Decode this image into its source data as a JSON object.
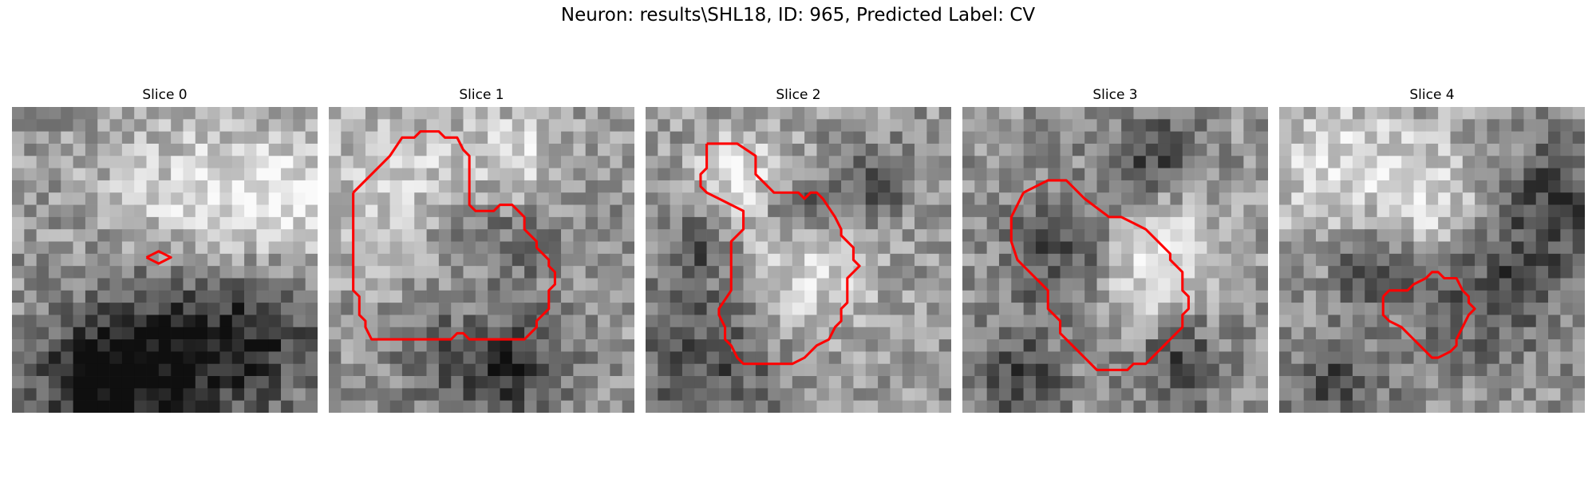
{
  "figure": {
    "title": "Neuron: results\\SHL18, ID: 965, Predicted Label: CV"
  },
  "panels": [
    {
      "title": "Slice 0",
      "contour_color": "#ff0000",
      "contour": [
        [
          11,
          12.3
        ],
        [
          12,
          11.8
        ],
        [
          13,
          12.3
        ],
        [
          12,
          12.8
        ],
        [
          11,
          12.3
        ]
      ],
      "dark_regions": [
        [
          12,
          18,
          8
        ],
        [
          10,
          22,
          6
        ],
        [
          20,
          18,
          6
        ],
        [
          5,
          22,
          4
        ]
      ],
      "bright_regions": [
        [
          14,
          8,
          8
        ],
        [
          22,
          7,
          5
        ]
      ]
    },
    {
      "title": "Slice 1",
      "contour_color": "#ff0000",
      "contour": [
        [
          2,
          7
        ],
        [
          5,
          4
        ],
        [
          6,
          2.5
        ],
        [
          7,
          2.5
        ],
        [
          7.5,
          2
        ],
        [
          9,
          2
        ],
        [
          9.5,
          2.5
        ],
        [
          10.5,
          2.5
        ],
        [
          11,
          3.5
        ],
        [
          11.5,
          4
        ],
        [
          11.5,
          8
        ],
        [
          12,
          8.5
        ],
        [
          13.5,
          8.5
        ],
        [
          14,
          8
        ],
        [
          15,
          8
        ],
        [
          16,
          9
        ],
        [
          16,
          10
        ],
        [
          17,
          11
        ],
        [
          17,
          11.5
        ],
        [
          18,
          12.5
        ],
        [
          18,
          13
        ],
        [
          18.5,
          13.5
        ],
        [
          18.5,
          14.5
        ],
        [
          18,
          15
        ],
        [
          18,
          16.5
        ],
        [
          17,
          17.5
        ],
        [
          17,
          18
        ],
        [
          16,
          19
        ],
        [
          11.5,
          19
        ],
        [
          11,
          18.5
        ],
        [
          10.5,
          18.5
        ],
        [
          10,
          19
        ],
        [
          3.5,
          19
        ],
        [
          3,
          18
        ],
        [
          3,
          17.5
        ],
        [
          2.5,
          17
        ],
        [
          2.5,
          15.5
        ],
        [
          2,
          15
        ],
        [
          2,
          7
        ]
      ],
      "dark_regions": [
        [
          12,
          11,
          6
        ],
        [
          10,
          19,
          5
        ],
        [
          15,
          21,
          4
        ]
      ],
      "bright_regions": [
        [
          6,
          6,
          7
        ],
        [
          11,
          15,
          5
        ],
        [
          15,
          4,
          4
        ]
      ]
    },
    {
      "title": "Slice 2",
      "contour_color": "#ff0000",
      "contour": [
        [
          5,
          3
        ],
        [
          6,
          3
        ],
        [
          7.5,
          3
        ],
        [
          9,
          4
        ],
        [
          9,
          5.5
        ],
        [
          10.5,
          7
        ],
        [
          12.5,
          7
        ],
        [
          13,
          7.5
        ],
        [
          13.5,
          7
        ],
        [
          14,
          7
        ],
        [
          14.5,
          7.5
        ],
        [
          15.5,
          9
        ],
        [
          16,
          10
        ],
        [
          16,
          10.5
        ],
        [
          17,
          11.5
        ],
        [
          17,
          12.5
        ],
        [
          17.5,
          13
        ],
        [
          16.5,
          14
        ],
        [
          16.5,
          16
        ],
        [
          16,
          16.5
        ],
        [
          16,
          17.5
        ],
        [
          15.5,
          18
        ],
        [
          15,
          19
        ],
        [
          14,
          19.5
        ],
        [
          13.5,
          20
        ],
        [
          13,
          20.5
        ],
        [
          12,
          21
        ],
        [
          8,
          21
        ],
        [
          7.5,
          20.5
        ],
        [
          7,
          19.5
        ],
        [
          6.5,
          19
        ],
        [
          6.5,
          18
        ],
        [
          6,
          17
        ],
        [
          6,
          16.5
        ],
        [
          7,
          15
        ],
        [
          7,
          11
        ],
        [
          8,
          10
        ],
        [
          8,
          8.5
        ],
        [
          6,
          7.5
        ],
        [
          5,
          7
        ],
        [
          4.5,
          6.5
        ],
        [
          4.5,
          5.5
        ],
        [
          5,
          5
        ],
        [
          5,
          3
        ]
      ],
      "dark_regions": [
        [
          5,
          20,
          6
        ],
        [
          12,
          8,
          3
        ],
        [
          18,
          6,
          3
        ],
        [
          4,
          11,
          3
        ]
      ],
      "bright_regions": [
        [
          7,
          5,
          4
        ],
        [
          12,
          13,
          6
        ]
      ]
    },
    {
      "title": "Slice 3",
      "contour_color": "#ff0000",
      "contour": [
        [
          5,
          7
        ],
        [
          7,
          6
        ],
        [
          8.5,
          6
        ],
        [
          10,
          7.5
        ],
        [
          12,
          9
        ],
        [
          13,
          9
        ],
        [
          14,
          9.5
        ],
        [
          15,
          10
        ],
        [
          16,
          11
        ],
        [
          16.5,
          11.5
        ],
        [
          17,
          12
        ],
        [
          17,
          12.5
        ],
        [
          18,
          13.5
        ],
        [
          18,
          15
        ],
        [
          18.5,
          15.5
        ],
        [
          18.5,
          16.5
        ],
        [
          18,
          17
        ],
        [
          18,
          18
        ],
        [
          17,
          19
        ],
        [
          16.5,
          19.5
        ],
        [
          16,
          20
        ],
        [
          15,
          21
        ],
        [
          14,
          21
        ],
        [
          13.5,
          21.5
        ],
        [
          11,
          21.5
        ],
        [
          10,
          20.5
        ],
        [
          9,
          19.5
        ],
        [
          8,
          18.5
        ],
        [
          8,
          17.5
        ],
        [
          7,
          16.5
        ],
        [
          7,
          15
        ],
        [
          6.5,
          14.5
        ],
        [
          6,
          14
        ],
        [
          5.5,
          13.5
        ],
        [
          5,
          13
        ],
        [
          4.5,
          12.5
        ],
        [
          4,
          11
        ],
        [
          4,
          9
        ],
        [
          4.5,
          8
        ],
        [
          5,
          7
        ]
      ],
      "dark_regions": [
        [
          8,
          12,
          5
        ],
        [
          4,
          22,
          4
        ],
        [
          15,
          4,
          4
        ],
        [
          17,
          20,
          4
        ]
      ],
      "bright_regions": [
        [
          14,
          14,
          5
        ],
        [
          16,
          10,
          4
        ]
      ]
    },
    {
      "title": "Slice 4",
      "contour_color": "#ff0000",
      "contour": [
        [
          8.5,
          15.5
        ],
        [
          9,
          15
        ],
        [
          10.5,
          15
        ],
        [
          11,
          14.5
        ],
        [
          12,
          14
        ],
        [
          12.5,
          13.5
        ],
        [
          13,
          13.5
        ],
        [
          13.5,
          14
        ],
        [
          14.5,
          14
        ],
        [
          15,
          15
        ],
        [
          15.5,
          15.5
        ],
        [
          15.5,
          16
        ],
        [
          16,
          16.5
        ],
        [
          15.5,
          17
        ],
        [
          15,
          18
        ],
        [
          14.5,
          19
        ],
        [
          14.5,
          19.5
        ],
        [
          14,
          20
        ],
        [
          13,
          20.5
        ],
        [
          12.5,
          20.5
        ],
        [
          11,
          19
        ],
        [
          10,
          18
        ],
        [
          9,
          17.5
        ],
        [
          8.5,
          17
        ],
        [
          8.5,
          15.5
        ]
      ],
      "dark_regions": [
        [
          17,
          14,
          6
        ],
        [
          22,
          7,
          5
        ],
        [
          7,
          12,
          4
        ],
        [
          4,
          22,
          4
        ]
      ],
      "bright_regions": [
        [
          5,
          5,
          7
        ],
        [
          13,
          8,
          5
        ]
      ]
    }
  ]
}
